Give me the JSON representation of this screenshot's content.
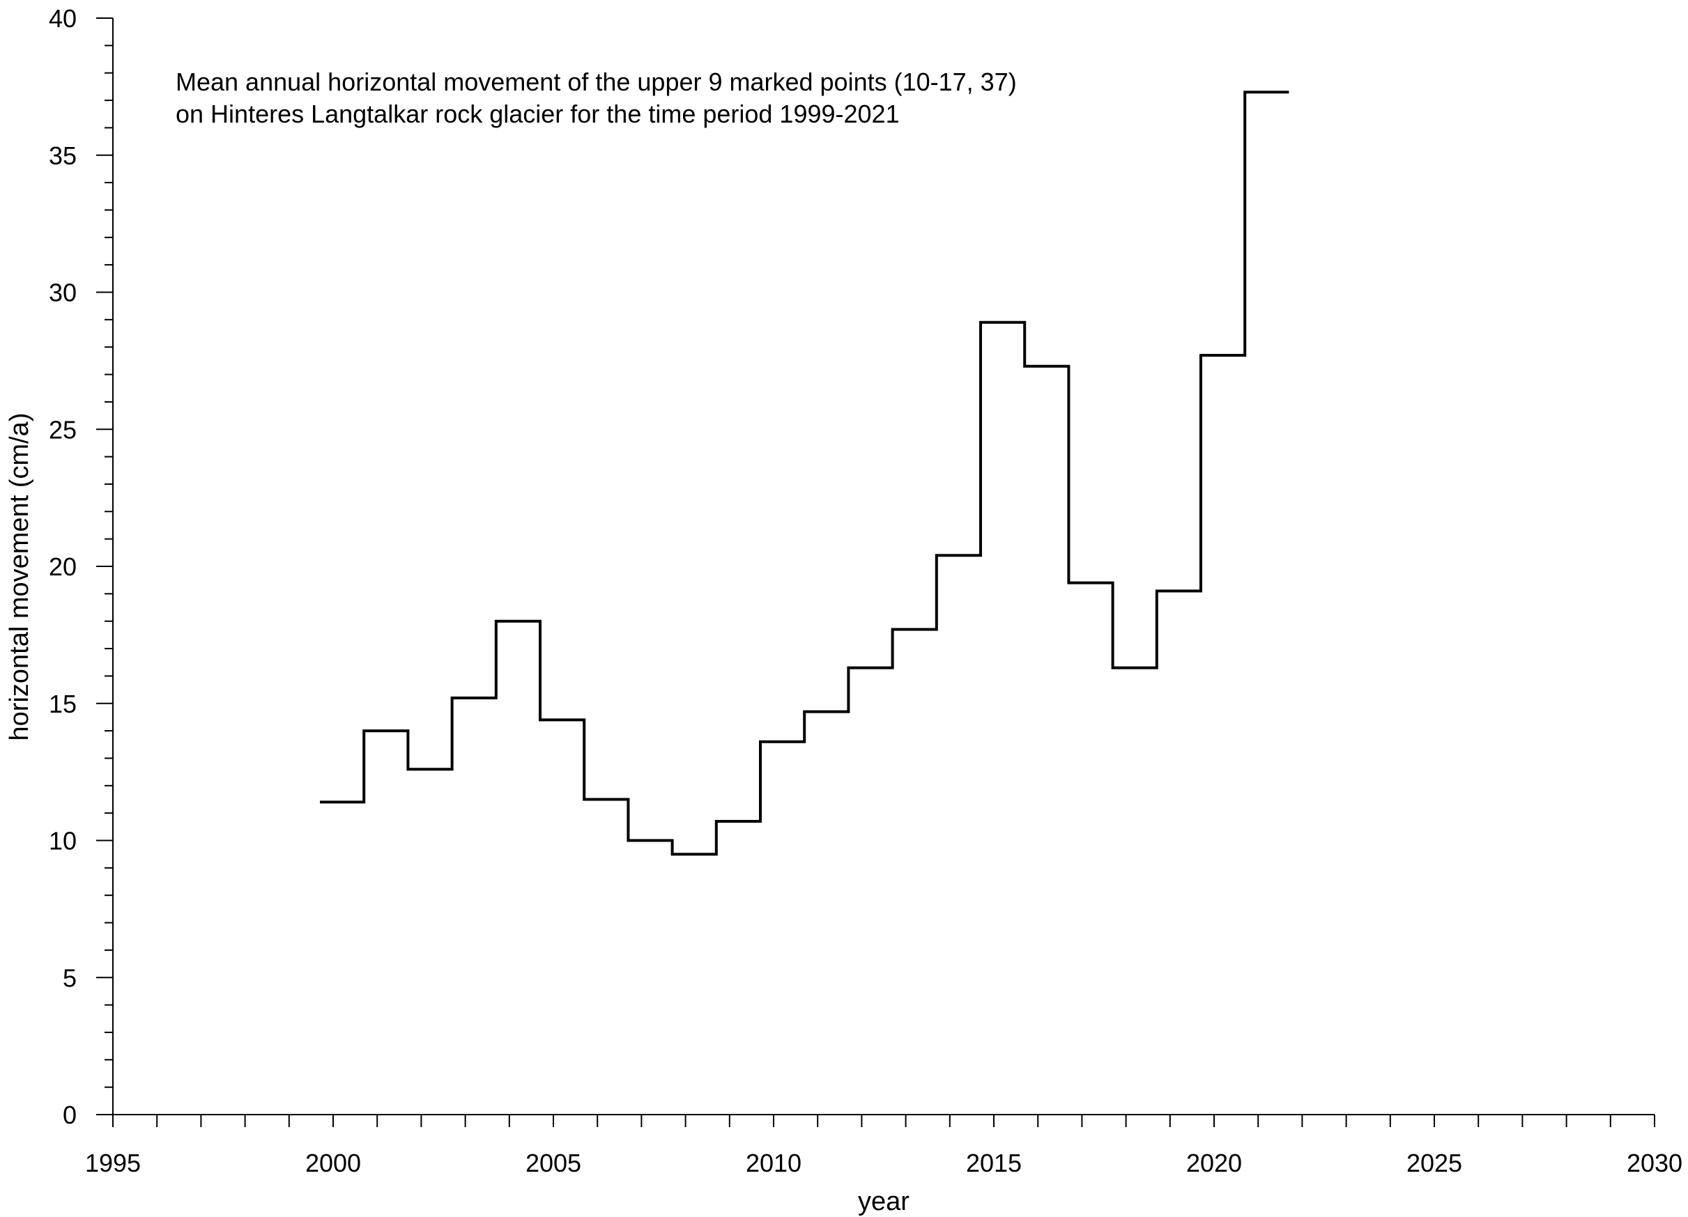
{
  "chart_data": {
    "type": "line",
    "step": true,
    "title_lines": [
      "Mean annual horizontal movement of the upper 9 marked points (10-17, 37)",
      "on Hinteres Langtalkar rock glacier for the time period 1999-2021"
    ],
    "xlabel": "year",
    "ylabel": "horizontal movement (cm/a)",
    "xlim": [
      1995,
      2030
    ],
    "ylim": [
      0,
      40
    ],
    "x_ticks": [
      "1995",
      "2000",
      "2005",
      "2010",
      "2015",
      "2020",
      "2025",
      "2030"
    ],
    "y_ticks": [
      "0",
      "5",
      "10",
      "15",
      "20",
      "25",
      "30",
      "35",
      "40"
    ],
    "x_minor_step": 1,
    "y_minor_step": 1,
    "grid": false,
    "line_color": "#000000",
    "series": [
      {
        "periods": [
          {
            "from": 1999.7,
            "to": 2000.7,
            "value": 11.4
          },
          {
            "from": 2000.7,
            "to": 2001.7,
            "value": 14.0
          },
          {
            "from": 2001.7,
            "to": 2002.7,
            "value": 12.6
          },
          {
            "from": 2002.7,
            "to": 2003.7,
            "value": 15.2
          },
          {
            "from": 2003.7,
            "to": 2004.7,
            "value": 18.0
          },
          {
            "from": 2004.7,
            "to": 2005.7,
            "value": 14.4
          },
          {
            "from": 2005.7,
            "to": 2006.7,
            "value": 11.5
          },
          {
            "from": 2006.7,
            "to": 2007.7,
            "value": 10.0
          },
          {
            "from": 2007.7,
            "to": 2008.7,
            "value": 9.5
          },
          {
            "from": 2008.7,
            "to": 2009.7,
            "value": 10.7
          },
          {
            "from": 2009.7,
            "to": 2010.7,
            "value": 13.6
          },
          {
            "from": 2010.7,
            "to": 2011.7,
            "value": 14.7
          },
          {
            "from": 2011.7,
            "to": 2012.7,
            "value": 16.3
          },
          {
            "from": 2012.7,
            "to": 2013.7,
            "value": 17.7
          },
          {
            "from": 2013.7,
            "to": 2014.7,
            "value": 20.4
          },
          {
            "from": 2014.7,
            "to": 2015.7,
            "value": 28.9
          },
          {
            "from": 2015.7,
            "to": 2016.7,
            "value": 27.3
          },
          {
            "from": 2016.7,
            "to": 2017.7,
            "value": 19.4
          },
          {
            "from": 2017.7,
            "to": 2018.7,
            "value": 16.3
          },
          {
            "from": 2018.7,
            "to": 2019.7,
            "value": 19.1
          },
          {
            "from": 2019.7,
            "to": 2020.7,
            "value": 27.7
          },
          {
            "from": 2020.7,
            "to": 2021.7,
            "value": 37.3
          }
        ]
      }
    ]
  }
}
